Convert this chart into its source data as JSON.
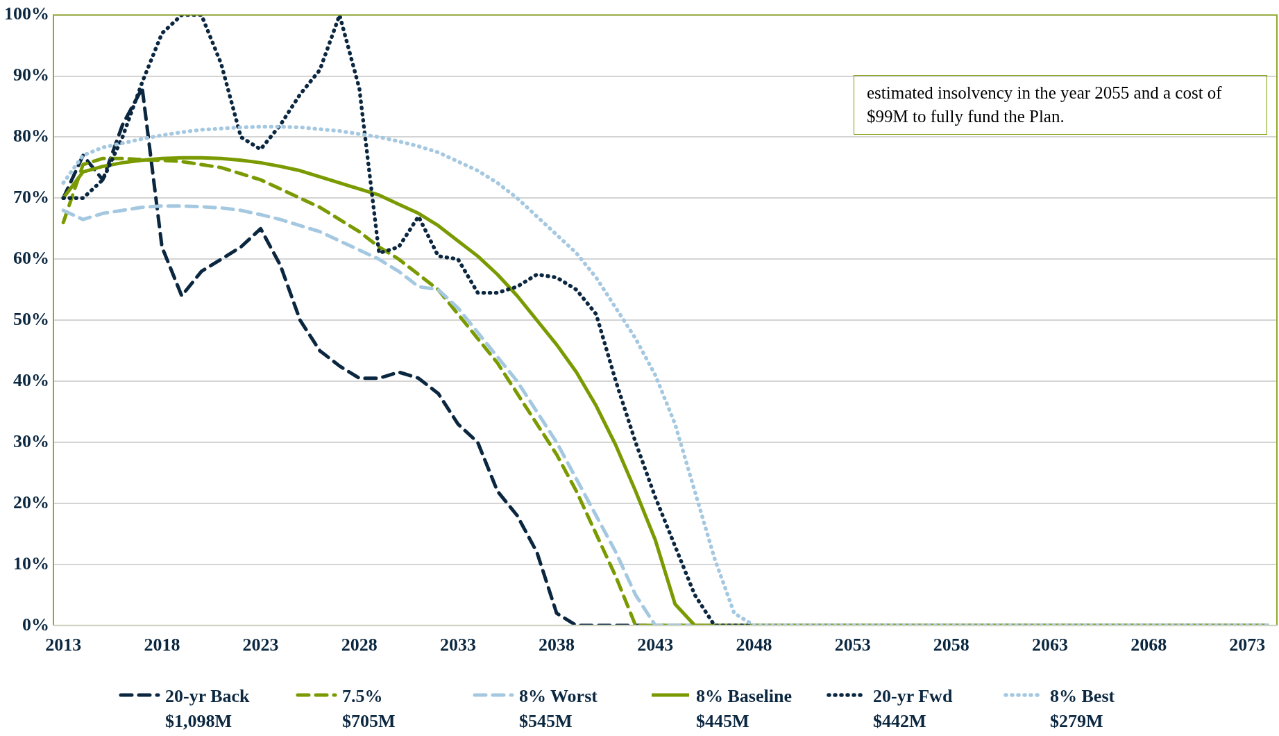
{
  "chart_data": {
    "type": "line",
    "categories": [
      "2013",
      null,
      null,
      null,
      null,
      "2018",
      null,
      null,
      null,
      null,
      "2023",
      null,
      null,
      null,
      null,
      "2028",
      null,
      null,
      null,
      null,
      "2033",
      null,
      null,
      null,
      null,
      "2038",
      null,
      null,
      null,
      null,
      "2043",
      null,
      null,
      null,
      null,
      "2048",
      null,
      null,
      null,
      null,
      "2053",
      null,
      null,
      null,
      null,
      "2058",
      null,
      null,
      null,
      null,
      "2063",
      null,
      null,
      null,
      null,
      "2068",
      null,
      null,
      null,
      null,
      "2073",
      null
    ],
    "ylim": [
      0,
      100
    ],
    "yticks": [
      {
        "value": 0,
        "label": "0%"
      },
      {
        "value": 10,
        "label": "10%"
      },
      {
        "value": 20,
        "label": "20%"
      },
      {
        "value": 30,
        "label": "30%"
      },
      {
        "value": 40,
        "label": "40%"
      },
      {
        "value": 50,
        "label": "50%"
      },
      {
        "value": 60,
        "label": "60%"
      },
      {
        "value": 70,
        "label": "70%"
      },
      {
        "value": 80,
        "label": "80%"
      },
      {
        "value": 90,
        "label": "90%"
      },
      {
        "value": 100,
        "label": "100%"
      }
    ],
    "grid": "y",
    "legend": "bottom",
    "marker": "none",
    "annotations": [
      "estimated insolvency in the year 2055 and a cost of $99M to fully fund the Plan."
    ],
    "series": [
      {
        "name": "20-yr Back\n$1,098M",
        "color": "#0b2740",
        "line_style": "dashed",
        "values": [
          70,
          77,
          73,
          82,
          88,
          62,
          54,
          58,
          60,
          62,
          65,
          59,
          50,
          45,
          42.5,
          40.5,
          40.5,
          41.5,
          40.5,
          38,
          33,
          30,
          22,
          18,
          12,
          2,
          0,
          0,
          0,
          0,
          0,
          0,
          0,
          0,
          0,
          0,
          0,
          0,
          0,
          0,
          0,
          0,
          0,
          0,
          0,
          0,
          0,
          0,
          0,
          0,
          0,
          0,
          0,
          0,
          0,
          0,
          0,
          0,
          0,
          0,
          0,
          0
        ]
      },
      {
        "name": "7.5%\n$705M",
        "color": "#7a9a01",
        "line_style": "dashed",
        "values": [
          66,
          75.5,
          76.5,
          76.5,
          76.3,
          76.2,
          76,
          75.5,
          75,
          74,
          73,
          71.5,
          70,
          68.5,
          66.5,
          64.5,
          62,
          60,
          57.5,
          55,
          51,
          47,
          43,
          38,
          33,
          28,
          22,
          15,
          8,
          0,
          0,
          0,
          0,
          0,
          0,
          0,
          0,
          0,
          0,
          0,
          0,
          0,
          0,
          0,
          0,
          0,
          0,
          0,
          0,
          0,
          0,
          0,
          0,
          0,
          0,
          0,
          0,
          0,
          0,
          0,
          0,
          0
        ]
      },
      {
        "name": "8% Worst\n$545M",
        "color": "#a5c8e1",
        "line_style": "dashed",
        "values": [
          68,
          66.5,
          67.5,
          68,
          68.5,
          68.7,
          68.7,
          68.6,
          68.4,
          68,
          67.3,
          66.5,
          65.5,
          64.5,
          63,
          61.5,
          60,
          58,
          55.5,
          55,
          52,
          48,
          44,
          40,
          35,
          30,
          24,
          18,
          12,
          5,
          0,
          0,
          0,
          0,
          0,
          0,
          0,
          0,
          0,
          0,
          0,
          0,
          0,
          0,
          0,
          0,
          0,
          0,
          0,
          0,
          0,
          0,
          0,
          0,
          0,
          0,
          0,
          0,
          0,
          0,
          0,
          0
        ]
      },
      {
        "name": "8% Baseline\n$445M",
        "color": "#7a9a01",
        "line_style": "solid",
        "values": [
          70,
          74.3,
          75.2,
          75.8,
          76.2,
          76.5,
          76.6,
          76.6,
          76.5,
          76.2,
          75.8,
          75.2,
          74.5,
          73.5,
          72.5,
          71.5,
          70.5,
          69,
          67.5,
          65.5,
          63,
          60.5,
          57.5,
          54,
          50,
          46,
          41.5,
          36,
          29.5,
          22,
          14,
          3.5,
          0,
          0,
          0,
          0,
          0,
          0,
          0,
          0,
          0,
          0,
          0,
          0,
          0,
          0,
          0,
          0,
          0,
          0,
          0,
          0,
          0,
          0,
          0,
          0,
          0,
          0,
          0,
          0,
          0,
          0
        ]
      },
      {
        "name": "20-yr Fwd\n$442M",
        "color": "#0b2740",
        "line_style": "dotted",
        "values": [
          70,
          70,
          73,
          80,
          89,
          97,
          100,
          100,
          92,
          80,
          78,
          82,
          87,
          91,
          100,
          88,
          61,
          62,
          67,
          60.5,
          60,
          54.5,
          54.5,
          55.5,
          57.5,
          57,
          55,
          51,
          40,
          30,
          21,
          13,
          5,
          0,
          0,
          0,
          0,
          0,
          0,
          0,
          0,
          0,
          0,
          0,
          0,
          0,
          0,
          0,
          0,
          0,
          0,
          0,
          0,
          0,
          0,
          0,
          0,
          0,
          0,
          0,
          0,
          0
        ]
      },
      {
        "name": "8% Best\n$279M",
        "color": "#a5c8e1",
        "line_style": "dotted",
        "values": [
          72.5,
          77,
          78.3,
          79,
          79.7,
          80.3,
          80.8,
          81.2,
          81.4,
          81.6,
          81.7,
          81.7,
          81.6,
          81.3,
          81,
          80.5,
          80,
          79.3,
          78.5,
          77.5,
          76,
          74.5,
          72.5,
          70,
          67,
          64,
          61,
          57,
          52,
          47,
          41,
          33,
          22,
          11,
          2,
          0,
          0,
          0,
          0,
          0,
          0,
          0,
          0,
          0,
          0,
          0,
          0,
          0,
          0,
          0,
          0,
          0,
          0,
          0,
          0,
          0,
          0,
          0,
          0,
          0,
          0,
          0
        ]
      }
    ]
  }
}
